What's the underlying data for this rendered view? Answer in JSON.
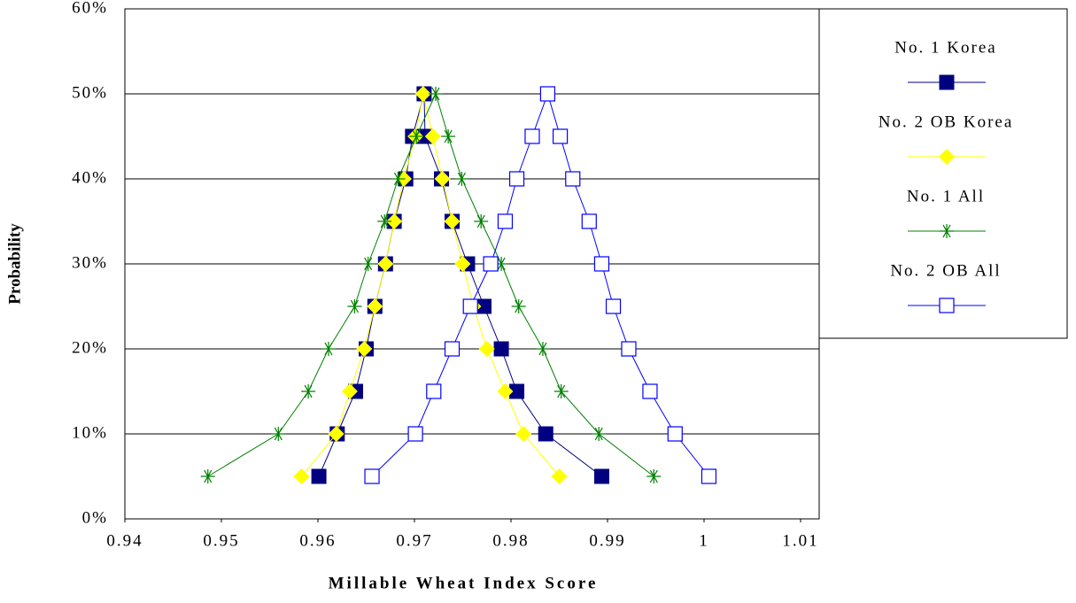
{
  "chart_data": {
    "type": "line",
    "xlabel": "Millable Wheat Index Score",
    "ylabel": "Probability",
    "xlim": [
      0.94,
      1.01
    ],
    "xticks": [
      0.94,
      0.95,
      0.96,
      0.97,
      0.98,
      0.99,
      1,
      1.01
    ],
    "ylim": [
      0,
      60
    ],
    "yticks": [
      {
        "value": 0,
        "label": "0%"
      },
      {
        "value": 10,
        "label": "10%"
      },
      {
        "value": 20,
        "label": "20%"
      },
      {
        "value": 30,
        "label": "30%"
      },
      {
        "value": 40,
        "label": "40%"
      },
      {
        "value": 50,
        "label": "50%"
      },
      {
        "value": 60,
        "label": "60%"
      }
    ],
    "grid": true,
    "legend": "right",
    "series": [
      {
        "name": "No. 1 Korea",
        "color": "#000080",
        "marker": "square",
        "x": [
          0.9601,
          0.962,
          0.9639,
          0.965,
          0.9659,
          0.967,
          0.9679,
          0.9691,
          0.9698,
          0.971,
          0.9711,
          0.9728,
          0.9739,
          0.9755,
          0.9772,
          0.979,
          0.9806,
          0.9836,
          0.9894
        ],
        "y": [
          5,
          10,
          15,
          20,
          25,
          30,
          35,
          40,
          45,
          50,
          45,
          40,
          35,
          30,
          25,
          20,
          15,
          10,
          5
        ]
      },
      {
        "name": "No. 2 OB Korea",
        "color": "#ffff00",
        "marker": "diamond",
        "x": [
          0.9583,
          0.9619,
          0.9633,
          0.9648,
          0.9659,
          0.967,
          0.9679,
          0.9689,
          0.9701,
          0.9709,
          0.9719,
          0.9729,
          0.9739,
          0.975,
          0.9761,
          0.9775,
          0.9794,
          0.9813,
          0.985
        ],
        "y": [
          5,
          10,
          15,
          20,
          25,
          30,
          35,
          40,
          45,
          50,
          45,
          40,
          35,
          30,
          25,
          20,
          15,
          10,
          5
        ]
      },
      {
        "name": "No. 1 All",
        "color": "#008000",
        "marker": "star",
        "x": [
          0.9486,
          0.9559,
          0.959,
          0.9611,
          0.9638,
          0.9652,
          0.9669,
          0.9683,
          0.9702,
          0.9722,
          0.9735,
          0.9749,
          0.9769,
          0.979,
          0.9808,
          0.9833,
          0.9852,
          0.9891,
          0.9948
        ],
        "y": [
          5,
          10,
          15,
          20,
          25,
          30,
          35,
          40,
          45,
          50,
          45,
          40,
          35,
          30,
          25,
          20,
          15,
          10,
          5
        ]
      },
      {
        "name": "No. 2 OB All",
        "color": "#0000ff",
        "marker": "open-square",
        "x": [
          0.9656,
          0.9701,
          0.972,
          0.9739,
          0.9758,
          0.9779,
          0.9794,
          0.9806,
          0.9822,
          0.9838,
          0.9851,
          0.9864,
          0.9881,
          0.9894,
          0.9906,
          0.9922,
          0.9944,
          0.997,
          1.0005
        ],
        "y": [
          5,
          10,
          15,
          20,
          25,
          30,
          35,
          40,
          45,
          50,
          45,
          40,
          35,
          30,
          25,
          20,
          15,
          10,
          5
        ]
      }
    ]
  }
}
